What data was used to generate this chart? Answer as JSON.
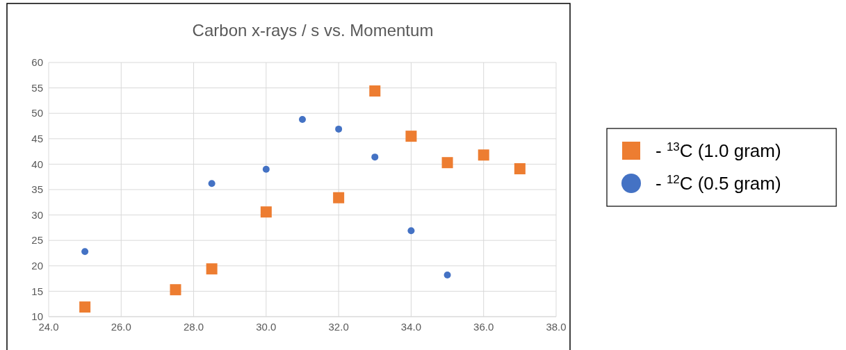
{
  "chart_data": {
    "type": "scatter",
    "title": "Carbon x-rays / s vs. Momentum",
    "series": [
      {
        "name": "- $^{13}$C (1.0 gram)",
        "color": "#ed7d31",
        "marker": "square",
        "x": [
          25,
          27.5,
          28.5,
          30,
          32,
          33,
          34,
          35,
          36,
          37
        ],
        "values": [
          11.9,
          15.3,
          19.4,
          30.6,
          33.4,
          54.4,
          45.5,
          40.3,
          41.8,
          39.1
        ]
      },
      {
        "name": "- $^{12}$C (0.5 gram)",
        "color": "#4472c4",
        "marker": "circle",
        "x": [
          25,
          28.5,
          30,
          31,
          32,
          33,
          34,
          35
        ],
        "values": [
          22.8,
          36.2,
          39.0,
          48.8,
          46.9,
          41.4,
          26.9,
          18.2
        ]
      }
    ],
    "xlim": [
      24,
      38
    ],
    "xticks": [
      {
        "value": 24,
        "label": "24.0"
      },
      {
        "value": 26,
        "label": "26.0"
      },
      {
        "value": 28,
        "label": "28.0"
      },
      {
        "value": 30,
        "label": "30.0"
      },
      {
        "value": 32,
        "label": "32.0"
      },
      {
        "value": 34,
        "label": "34.0"
      },
      {
        "value": 36,
        "label": "36.0"
      },
      {
        "value": 38,
        "label": "38.0"
      }
    ],
    "ylim": [
      10,
      60
    ],
    "yticks": [
      10,
      15,
      20,
      25,
      30,
      35,
      40,
      45,
      50,
      55,
      60
    ],
    "grid": true,
    "legend": "right"
  }
}
